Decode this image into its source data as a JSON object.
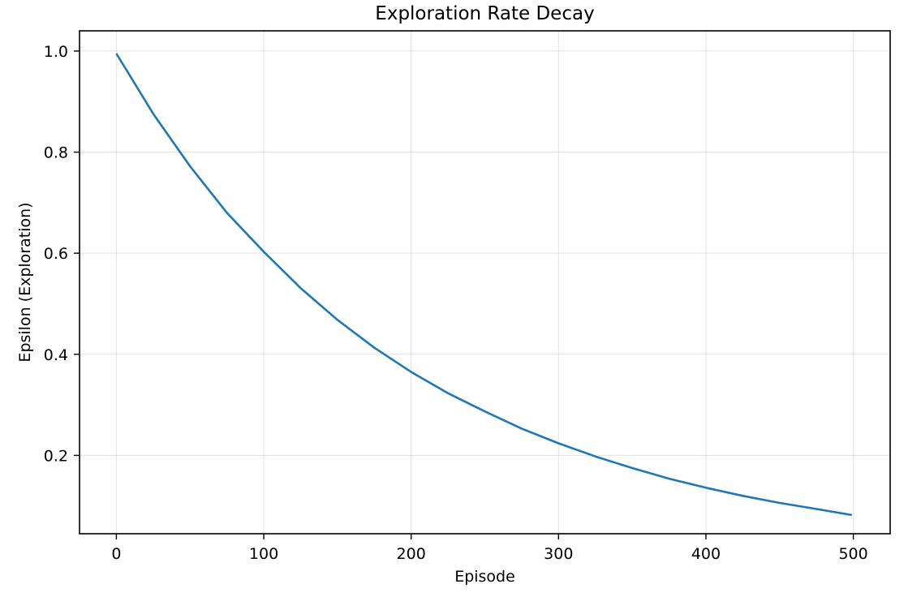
{
  "chart_data": {
    "type": "line",
    "title": "Exploration Rate Decay",
    "xlabel": "Episode",
    "ylabel": "Epsilon (Exploration)",
    "xlim": [
      -25,
      525
    ],
    "ylim": [
      0.045,
      1.04
    ],
    "xticks": [
      0,
      100,
      200,
      300,
      400,
      500
    ],
    "xtick_labels": [
      "0",
      "100",
      "200",
      "300",
      "400",
      "500"
    ],
    "yticks": [
      0.2,
      0.4,
      0.6,
      0.8,
      1.0
    ],
    "ytick_labels": [
      "0.2",
      "0.4",
      "0.6",
      "0.8",
      "1.0"
    ],
    "grid": true,
    "legend": "none",
    "series": [
      {
        "color": "#1f77b4",
        "x": [
          0,
          25,
          50,
          75,
          100,
          125,
          150,
          175,
          200,
          225,
          250,
          275,
          300,
          325,
          350,
          375,
          400,
          425,
          450,
          475,
          499
        ],
        "y": [
          0.995,
          0.876,
          0.772,
          0.68,
          0.603,
          0.531,
          0.468,
          0.413,
          0.365,
          0.323,
          0.287,
          0.253,
          0.224,
          0.198,
          0.175,
          0.154,
          0.136,
          0.12,
          0.106,
          0.094,
          0.082
        ]
      }
    ]
  }
}
